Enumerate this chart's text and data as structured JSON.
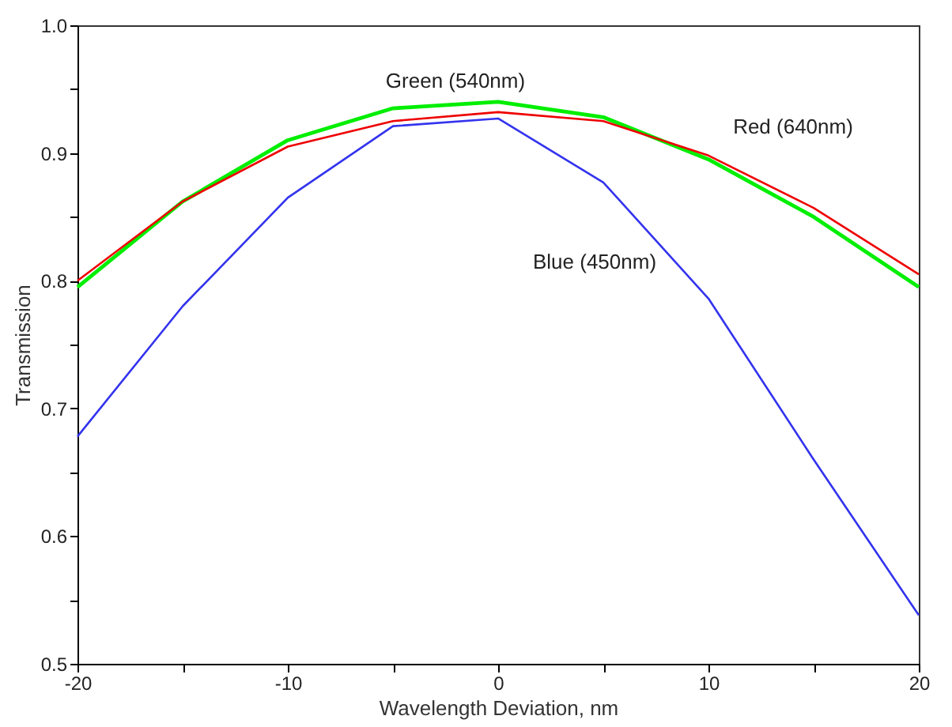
{
  "chart_data": {
    "type": "line",
    "xlabel": "Wavelength Deviation, nm",
    "ylabel": "Transmission",
    "x": [
      -20,
      -15,
      -10,
      -5,
      0,
      5,
      10,
      15,
      20
    ],
    "series": [
      {
        "name": "Green (540nm)",
        "color": "#00ee00",
        "values": [
          0.795,
          0.862,
          0.91,
          0.935,
          0.94,
          0.928,
          0.895,
          0.85,
          0.795
        ]
      },
      {
        "name": "Red (640nm)",
        "color": "#ee0000",
        "values": [
          0.8,
          0.862,
          0.905,
          0.925,
          0.932,
          0.925,
          0.898,
          0.857,
          0.805
        ]
      },
      {
        "name": "Blue (450nm)",
        "color": "#3333ee",
        "values": [
          0.678,
          0.78,
          0.865,
          0.921,
          0.927,
          0.877,
          0.786,
          0.66,
          0.538
        ]
      }
    ],
    "line_style": "solid",
    "xlim": [
      -20,
      20
    ],
    "ylim": [
      0.5,
      1.0
    ],
    "xticks": [
      -20,
      {
        "value": -15,
        "label": null
      },
      -10,
      {
        "value": -5,
        "label": null
      },
      0,
      {
        "value": 5,
        "label": null
      },
      10,
      {
        "value": 15,
        "label": null
      },
      20
    ],
    "yticks": [
      0.5,
      {
        "value": 0.55,
        "label": null
      },
      0.6,
      {
        "value": 0.65,
        "label": null
      },
      0.7,
      {
        "value": 0.75,
        "label": null
      },
      0.8,
      {
        "value": 0.85,
        "label": null
      },
      0.9,
      {
        "value": 0.95,
        "label": null
      },
      {
        "value": 1.0,
        "label": "1.0"
      }
    ],
    "grid": false
  }
}
